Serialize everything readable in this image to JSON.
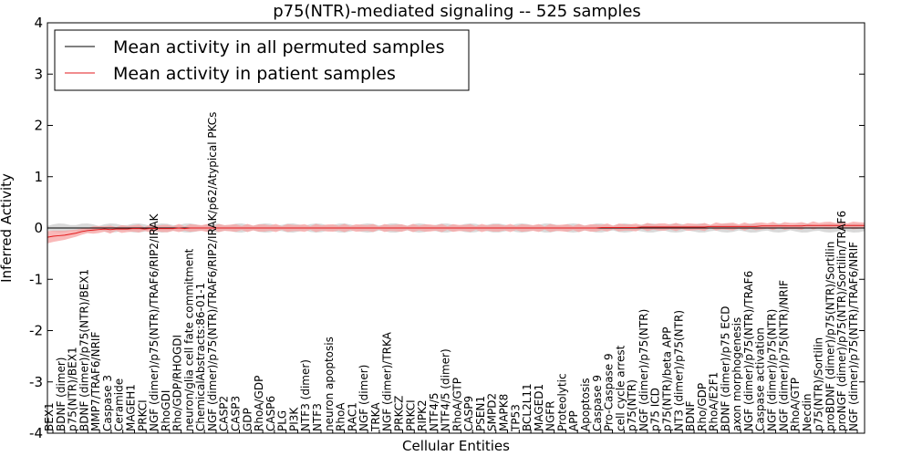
{
  "chart_data": {
    "type": "line",
    "title": "p75(NTR)-mediated signaling -- 525 samples",
    "xlabel": "Cellular Entities",
    "ylabel": "Inferred Activity",
    "ylim": [
      -4,
      4
    ],
    "yticks": [
      -4,
      -3,
      -2,
      -1,
      0,
      1,
      2,
      3,
      4
    ],
    "grid": false,
    "legend_position": "top-left",
    "colors": {
      "permuted": "#000000",
      "patient": "#e31a1c",
      "patient_band": "#f7a1a1",
      "permuted_band": "#bfbfbf"
    },
    "series": [
      {
        "name": "Mean activity in all permuted samples",
        "color": "#000000",
        "values": [
          0,
          0,
          0,
          0,
          0,
          0,
          0,
          0,
          0,
          0,
          0,
          0,
          0,
          0,
          0,
          0,
          0,
          0,
          0,
          0,
          0,
          0,
          0,
          0,
          0,
          0,
          0,
          0,
          0,
          0,
          0,
          0,
          0,
          0,
          0,
          0,
          0,
          0,
          0,
          0,
          0,
          0,
          0,
          0,
          0,
          0,
          0,
          0,
          0,
          0,
          0,
          0,
          0,
          0,
          0,
          0,
          0,
          0,
          0,
          0,
          0,
          0,
          0,
          0,
          0,
          0,
          0,
          0,
          0,
          0,
          0,
          0,
          0,
          0,
          0,
          0,
          0,
          0,
          0,
          0,
          0,
          0,
          0,
          0,
          0,
          0,
          0,
          0,
          0,
          0,
          0,
          0,
          0,
          0,
          0,
          0,
          0,
          0,
          0,
          0,
          0,
          0,
          0,
          0,
          0,
          0,
          0,
          0,
          0,
          0,
          0,
          0,
          0,
          0,
          0,
          0,
          0,
          0,
          0,
          0,
          0,
          0,
          0,
          0,
          0,
          0,
          0,
          0,
          0,
          0,
          0,
          0,
          0,
          0,
          0,
          0,
          0,
          0,
          0,
          0,
          0,
          0,
          0,
          0
        ]
      },
      {
        "name": "Mean activity in patient samples",
        "color": "#e31a1c",
        "values": [
          -0.18,
          -0.16,
          -0.15,
          -0.14,
          -0.12,
          -0.1,
          -0.07,
          -0.05,
          -0.04,
          -0.03,
          -0.02,
          -0.03,
          -0.02,
          -0.02,
          -0.02,
          -0.01,
          -0.01,
          -0.02,
          -0.01,
          -0.01,
          -0.01,
          -0.01,
          -0.01,
          0,
          -0.01,
          0,
          0,
          0,
          0,
          0,
          0,
          0,
          0,
          0,
          0,
          0,
          0,
          0,
          0,
          0,
          0,
          0,
          0,
          0,
          0,
          0,
          0,
          0,
          0,
          0,
          0,
          0,
          0,
          0,
          0,
          0,
          0,
          0,
          0,
          0,
          0,
          0,
          0,
          0,
          0,
          0,
          0,
          0,
          0,
          0,
          0,
          0,
          0,
          0,
          0,
          0,
          0,
          0,
          0,
          0,
          0,
          0,
          0,
          0,
          0,
          0,
          0,
          0,
          0,
          0,
          0,
          0,
          0,
          0,
          0,
          0,
          0,
          0.01,
          0.01,
          0.01,
          0.01,
          0.01,
          0.01,
          0.01,
          0.02,
          0.02,
          0.02,
          0.02,
          0.02,
          0.02,
          0.02,
          0.02,
          0.02,
          0.02,
          0.02,
          0.02,
          0.03,
          0.03,
          0.03,
          0.03,
          0.03,
          0.03,
          0.03,
          0.03,
          0.03,
          0.04,
          0.04,
          0.04,
          0.04,
          0.04,
          0.04,
          0.04,
          0.04,
          0.05,
          0.05,
          0.05,
          0.05,
          0.05,
          0.05,
          0.05,
          0.05,
          0.05,
          0.05,
          0.05
        ]
      }
    ],
    "x_labels": [
      "BEX1",
      "BDNF (dimer)",
      "p75(NTR)/BEX1",
      "BDNF (dimer)/p75(NTR)/BEX1",
      "MMP7/TRAF6/NRIF",
      "Caspase 3",
      "Ceramide",
      "MAGEH1",
      "PRKCI",
      "NGF (dimer)/p75(NTR)/TRAF6/RIP2/IRAK",
      "RhoGDI",
      "Rho/GDP/RHOGDI",
      "neuron/glia cell fate commitment",
      "ChemicalAbstracts:86-01-1",
      "NGF (dimer)/p75(NTR)/TRAF6/RIP2/IRAK/p62/Atypical PKCs",
      "CASP2",
      "CASP3",
      "GDP",
      "RhoA/GDP",
      "CASP6",
      "PLG",
      "PI3K",
      "NTF3 (dimer)",
      "NTF3",
      "neuron apoptosis",
      "RhoA",
      "RAC1",
      "NGF (dimer)",
      "TRKA",
      "NGF (dimer)/TRKA",
      "PRKCZ",
      "PRKCI",
      "RIPK2",
      "NTF4/5",
      "NTF4/5 (dimer)",
      "RhoA/GTP",
      "CASP9",
      "PSEN1",
      "SMPD2",
      "MAPK8",
      "TP53",
      "BCL2L11",
      "MAGED1",
      "NGFR",
      "Proteolytic",
      "APP",
      "Apoptosis",
      "Caspase 9",
      "Pro-Caspase 9",
      "cell cycle arrest",
      "p75(NTR)",
      "NGF (dimer)/p75(NTR)",
      "p75 ICD",
      "p75(NTR)/beta APP",
      "NT3 (dimer)/p75(NTR)",
      "BDNF",
      "Rho/GDP",
      "RhoA/E2F1",
      "BDNF (dimer)/p75 ECD",
      "axon morphogenesis",
      "NGF (dimer)/p75(NTR)/TRAF6",
      "Caspase activation",
      "NGF (dimer)/p75(NTR)",
      "NGF (dimer)/p75(NTR)/NRIF",
      "RhoA/GTP",
      "Necdin",
      "p75(NTR)/Sortilin",
      "proBDNF (dimer)/p75(NTR)/Sortilin",
      "proNGF (dimer)/p75(NTR)/Sortilin/TRAF6",
      "NGF (dimer)/p75(NTR)/TRAF6/NRIF"
    ],
    "label_positions_note": "labels drawn vertically along the x axis"
  }
}
